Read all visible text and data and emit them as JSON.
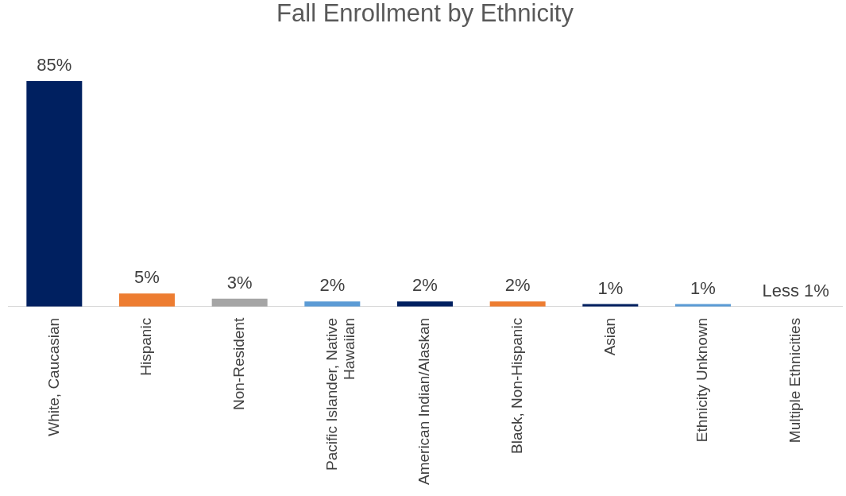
{
  "chart_data": {
    "type": "bar",
    "title": "Fall Enrollment by Ethnicity",
    "categories": [
      "White, Caucasian",
      "Hispanic",
      "Non-Resident",
      "Pacific Islander, Native Hawaiian",
      "American Indian/Alaskan",
      "Black, Non-Hispanic",
      "Asian",
      "Ethnicity Unknown",
      "Multiple Ethnicities"
    ],
    "values": [
      85,
      5,
      3,
      2,
      2,
      2,
      1,
      1,
      null
    ],
    "colors": [
      "#002060",
      "#ed7d31",
      "#a5a5a5",
      "#5b9bd5",
      "#002060",
      "#ed7d31",
      "#002060",
      "#5b9bd5",
      "#a5a5a5"
    ],
    "value_labels": [
      "85%",
      "5%",
      "3%",
      "2%",
      "2%",
      "2%",
      "1%",
      "1%",
      "Less 1%"
    ],
    "tick_labels": "x",
    "grid": false,
    "legend": false
  }
}
